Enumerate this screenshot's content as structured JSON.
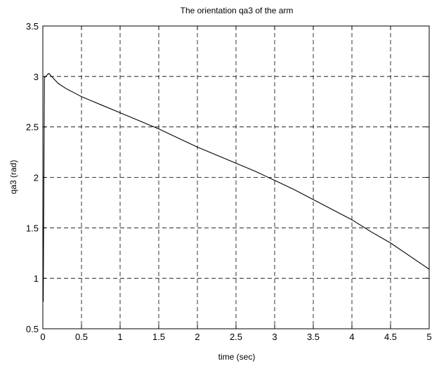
{
  "chart_data": {
    "type": "line",
    "title": "The orientation qa3 of the arm",
    "xlabel": "time (sec)",
    "ylabel": "qa3 (rad)",
    "xlim": [
      0,
      5
    ],
    "ylim": [
      0.5,
      3.5
    ],
    "xticks": [
      "0",
      "0.5",
      "1",
      "1.5",
      "2",
      "2.5",
      "3",
      "3.5",
      "4",
      "4.5",
      "5"
    ],
    "yticks": [
      "0.5",
      "1",
      "1.5",
      "2",
      "2.5",
      "3",
      "3.5"
    ],
    "grid": true,
    "grid_style": "dashed",
    "series": [
      {
        "color": "#000000",
        "x": [
          0,
          0.005,
          0.02,
          0.04,
          0.06,
          0.08,
          0.1,
          0.15,
          0.2,
          0.3,
          0.4,
          0.5,
          0.75,
          1.0,
          1.25,
          1.5,
          1.75,
          2.0,
          2.25,
          2.5,
          2.75,
          3.0,
          3.25,
          3.5,
          3.75,
          4.0,
          4.25,
          4.5,
          4.75,
          5.0
        ],
        "y": [
          0.77,
          0.77,
          2.99,
          3.0,
          3.02,
          3.03,
          3.01,
          2.97,
          2.93,
          2.88,
          2.84,
          2.8,
          2.72,
          2.64,
          2.56,
          2.48,
          2.39,
          2.3,
          2.22,
          2.14,
          2.06,
          1.97,
          1.88,
          1.78,
          1.68,
          1.58,
          1.46,
          1.35,
          1.22,
          1.09
        ]
      }
    ]
  }
}
